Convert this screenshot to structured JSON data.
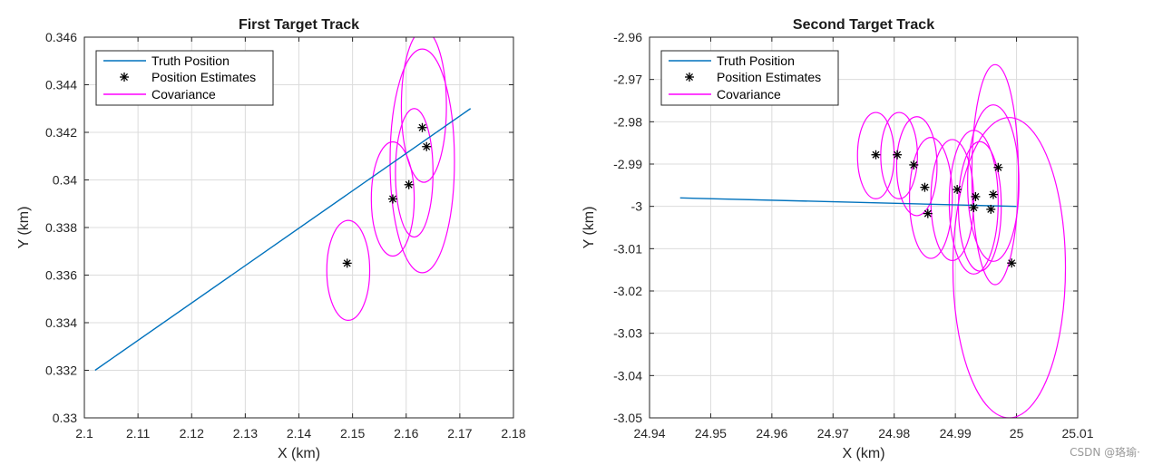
{
  "watermark": "CSDN @珞瑜·",
  "colors": {
    "truth": "#0072BD",
    "estimate": "#000000",
    "covariance": "#FF00FF",
    "grid": "#dcdcdc",
    "axis": "#262626"
  },
  "chart_data": [
    {
      "type": "line",
      "title": "First Target Track",
      "xlabel": "X (km)",
      "ylabel": "Y (km)",
      "xlim": [
        2.1,
        2.18
      ],
      "ylim": [
        0.33,
        0.346
      ],
      "xticks": [
        "2.1",
        "2.11",
        "2.12",
        "2.13",
        "2.14",
        "2.15",
        "2.16",
        "2.17",
        "2.18"
      ],
      "yticks": [
        "0.33",
        "0.332",
        "0.334",
        "0.336",
        "0.338",
        "0.34",
        "0.342",
        "0.344",
        "0.346"
      ],
      "grid": true,
      "legend_position": "top-left",
      "legend": [
        "Truth Position",
        "Position Estimates",
        "Covariance"
      ],
      "truth": {
        "x": [
          2.102,
          2.172
        ],
        "y": [
          0.332,
          0.343
        ]
      },
      "estimates": {
        "x": [
          2.149,
          2.1575,
          2.1605,
          2.163,
          2.1638
        ],
        "y": [
          0.3365,
          0.3392,
          0.3398,
          0.3422,
          0.3414
        ]
      },
      "covariance": [
        {
          "cx": 2.1492,
          "cy": 0.3362,
          "rx": 0.004,
          "ry": 0.0021,
          "angle": 84
        },
        {
          "cx": 2.1575,
          "cy": 0.3392,
          "rx": 0.004,
          "ry": 0.0024,
          "angle": 82
        },
        {
          "cx": 2.1615,
          "cy": 0.3403,
          "rx": 0.0035,
          "ry": 0.0027,
          "angle": 80
        },
        {
          "cx": 2.163,
          "cy": 0.3408,
          "rx": 0.006,
          "ry": 0.0047,
          "angle": 78
        },
        {
          "cx": 2.1633,
          "cy": 0.3431,
          "rx": 0.0042,
          "ry": 0.0032,
          "angle": 80
        }
      ]
    },
    {
      "type": "line",
      "title": "Second Target Track",
      "xlabel": "X (km)",
      "ylabel": "Y (km)",
      "xlim": [
        24.94,
        25.01
      ],
      "ylim": [
        -3.05,
        -2.96
      ],
      "xticks": [
        "24.94",
        "24.95",
        "24.96",
        "24.97",
        "24.98",
        "24.99",
        "25",
        "25.01"
      ],
      "yticks": [
        "-3.05",
        "-3.04",
        "-3.03",
        "-3.02",
        "-3.01",
        "-3",
        "-2.99",
        "-2.98",
        "-2.97",
        "-2.96"
      ],
      "grid": true,
      "legend_position": "top-left",
      "legend": [
        "Truth Position",
        "Position Estimates",
        "Covariance"
      ],
      "truth": {
        "x": [
          24.945,
          25.0
        ],
        "y": [
          -2.998,
          -3.0
        ]
      },
      "estimates": {
        "x": [
          24.977,
          24.9805,
          24.9832,
          24.985,
          24.9855,
          24.9903,
          24.993,
          24.9933,
          24.9958,
          24.9962,
          24.997,
          24.9992
        ],
        "y": [
          -2.9878,
          -2.9878,
          -2.9902,
          -2.9955,
          -3.0017,
          -2.996,
          -3.0003,
          -2.9977,
          -3.0007,
          -2.9972,
          -2.9908,
          -3.0134
        ]
      },
      "covariance": [
        {
          "cx": 24.977,
          "cy": -2.988,
          "rx": 0.003,
          "ry": 0.0102,
          "angle": 0
        },
        {
          "cx": 24.9808,
          "cy": -2.988,
          "rx": 0.003,
          "ry": 0.0102,
          "angle": 0
        },
        {
          "cx": 24.9837,
          "cy": -2.9905,
          "rx": 0.0033,
          "ry": 0.0117,
          "angle": 0
        },
        {
          "cx": 24.986,
          "cy": -2.998,
          "rx": 0.0035,
          "ry": 0.0143,
          "angle": 0
        },
        {
          "cx": 24.9895,
          "cy": -2.9985,
          "rx": 0.0035,
          "ry": 0.0143,
          "angle": 0
        },
        {
          "cx": 24.993,
          "cy": -2.999,
          "rx": 0.004,
          "ry": 0.017,
          "angle": 2
        },
        {
          "cx": 24.994,
          "cy": -3.0,
          "rx": 0.0035,
          "ry": 0.0153,
          "angle": 4
        },
        {
          "cx": 24.9962,
          "cy": -2.9945,
          "rx": 0.0042,
          "ry": 0.0185,
          "angle": 6
        },
        {
          "cx": 24.9965,
          "cy": -2.9925,
          "rx": 0.0038,
          "ry": 0.026,
          "angle": 8
        },
        {
          "cx": 24.9988,
          "cy": -3.0145,
          "rx": 0.0092,
          "ry": 0.0355,
          "angle": 3
        }
      ]
    }
  ]
}
